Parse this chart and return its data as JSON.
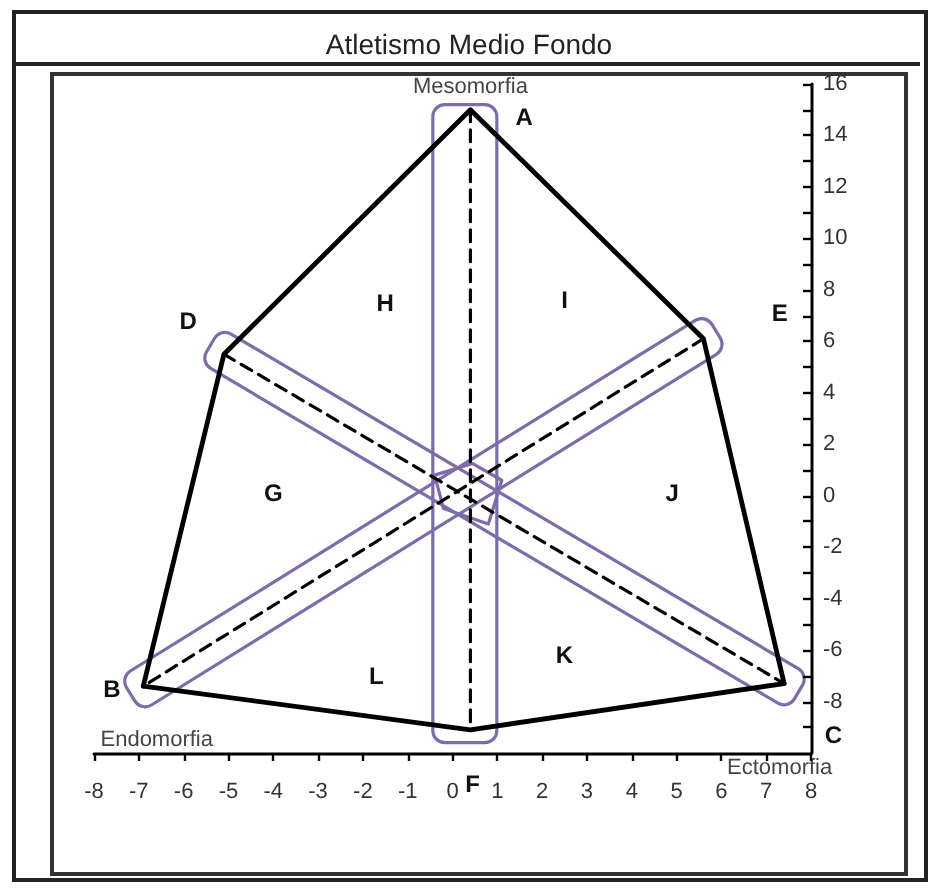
{
  "chart_data": {
    "type": "line",
    "title": "Atletismo Medio Fondo",
    "series": [
      {
        "color": "#000000",
        "line_style": "dashed",
        "x": [
          0.4,
          0.4
        ],
        "values": [
          15,
          -9.1
        ]
      },
      {
        "color": "#000000",
        "line_style": "dashed",
        "x": [
          -5.1,
          7.4
        ],
        "values": [
          5.5,
          -7.3
        ]
      },
      {
        "color": "#000000",
        "line_style": "dashed",
        "x": [
          5.6,
          -6.9
        ],
        "values": [
          6.1,
          -7.4
        ]
      },
      {
        "color": "#000000",
        "line_style": "solid",
        "x": [
          -6.9,
          -5.1,
          0.4,
          5.6,
          7.4
        ],
        "values": [
          -7.4,
          5.5,
          15,
          6.1,
          -7.3
        ]
      },
      {
        "color": "#000000",
        "line_style": "solid",
        "x": [
          -6.9,
          0.4,
          7.4
        ],
        "values": [
          -7.4,
          -9.1,
          -7.3
        ]
      }
    ],
    "xlim": [
      -8,
      8
    ],
    "xticks": [
      -8,
      -7,
      -6,
      -5,
      -4,
      -3,
      -2,
      -1,
      0,
      1,
      2,
      3,
      4,
      5,
      6,
      7,
      8
    ],
    "ylim": [
      -10,
      16
    ],
    "yticks": [
      16,
      {
        "value": 15,
        "label": null
      },
      14,
      {
        "value": 13,
        "label": null
      },
      12,
      {
        "value": 11,
        "label": null
      },
      10,
      {
        "value": 9,
        "label": null
      },
      8,
      {
        "value": 7,
        "label": null
      },
      6,
      {
        "value": 5,
        "label": null
      },
      4,
      {
        "value": 3,
        "label": null
      },
      2,
      {
        "value": 1,
        "label": null
      },
      0,
      {
        "value": -1,
        "label": null
      },
      -2,
      {
        "value": -3,
        "label": null
      },
      -4,
      {
        "value": -5,
        "label": null
      },
      -6,
      {
        "value": -7,
        "label": null
      },
      -8,
      {
        "value": -9,
        "label": null
      }
    ],
    "grid": false,
    "marker": "none",
    "annotations": [
      "Mesomorfia",
      "Endomorfia",
      "Ectomorfia",
      "A",
      "H",
      "I",
      "D",
      "E",
      "G",
      "J",
      "L",
      "K",
      "B",
      "C",
      "F"
    ]
  }
}
